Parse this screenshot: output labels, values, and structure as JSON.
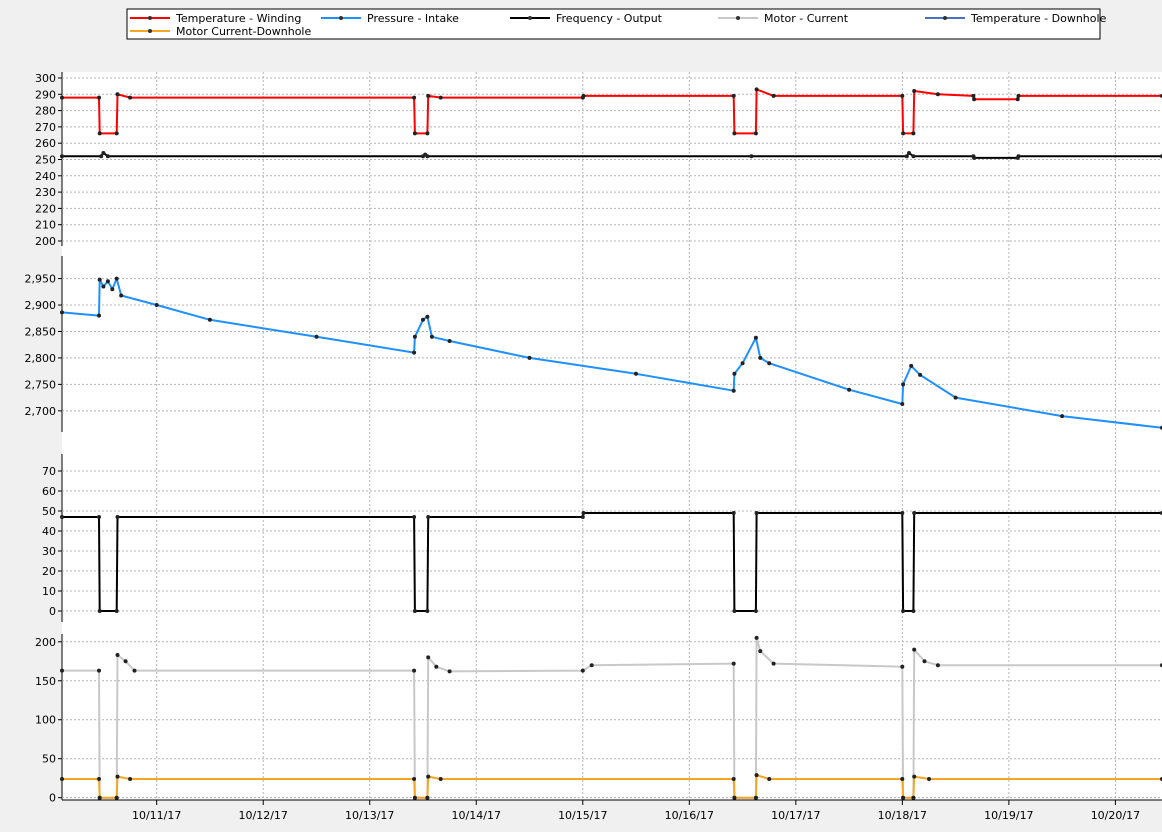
{
  "legend": [
    {
      "label": "Temperature - Winding",
      "color": "#ff0000"
    },
    {
      "label": "Pressure - Intake",
      "color": "#1e90ff"
    },
    {
      "label": "Frequency - Output",
      "color": "#000000"
    },
    {
      "label": "Motor - Current",
      "color": "#c8c8c8"
    },
    {
      "label": "Temperature - Downhole",
      "color": "#4a72c4"
    },
    {
      "label": "Motor Current-Downhole",
      "color": "#f5a623"
    }
  ],
  "colors": {
    "background": "#f0f0f0",
    "plot_background": "#ffffff",
    "grid": "#b4b4b4",
    "axis": "#000000"
  },
  "chart_data": {
    "type": "line",
    "x_axis": {
      "type": "date",
      "range": [
        "10/10/17 14:40",
        "10/20/17 22:30"
      ],
      "tick_labels": [
        "10/11/17",
        "10/12/17",
        "10/13/17",
        "10/14/17",
        "10/15/17",
        "10/16/17",
        "10/17/17",
        "10/18/17",
        "10/19/17",
        "10/20/17"
      ],
      "grid": true
    },
    "panels": [
      {
        "name": "temperature",
        "ylim": [
          200,
          300
        ],
        "yticks": [
          "200",
          "210",
          "220",
          "230",
          "240",
          "250",
          "260",
          "270",
          "280",
          "290",
          "300"
        ],
        "series": [
          {
            "name": "Temperature - Winding",
            "color": "#ff0000",
            "points": [
              [
                "10/10/17 14:40",
                288
              ],
              [
                "10/10/17 23:00",
                288
              ],
              [
                "10/10/17 23:10",
                266
              ],
              [
                "10/11/17 03:00",
                266
              ],
              [
                "10/11/17 03:10",
                290
              ],
              [
                "10/11/17 06:00",
                288
              ],
              [
                "10/13/17 22:00",
                288
              ],
              [
                "10/13/17 22:10",
                266
              ],
              [
                "10/14/17 01:00",
                266
              ],
              [
                "10/14/17 01:10",
                289
              ],
              [
                "10/14/17 04:00",
                288
              ],
              [
                "10/15/17 12:00",
                288
              ],
              [
                "10/15/17 12:10",
                289
              ],
              [
                "10/16/17 22:00",
                289
              ],
              [
                "10/16/17 22:10",
                266
              ],
              [
                "10/17/17 03:00",
                266
              ],
              [
                "10/17/17 03:10",
                293
              ],
              [
                "10/17/17 07:00",
                289
              ],
              [
                "10/18/17 12:00",
                289
              ],
              [
                "10/18/17 12:10",
                266
              ],
              [
                "10/18/17 14:30",
                266
              ],
              [
                "10/18/17 14:40",
                292
              ],
              [
                "10/18/17 20:00",
                290
              ],
              [
                "10/19/17 04:00",
                289
              ],
              [
                "10/19/17 04:10",
                287
              ],
              [
                "10/19/17 14:00",
                287
              ],
              [
                "10/19/17 14:10",
                289
              ],
              [
                "10/20/17 22:30",
                289
              ]
            ]
          },
          {
            "name": "Temperature - Downhole",
            "color": "#000000",
            "points": [
              [
                "10/10/17 14:40",
                252
              ],
              [
                "10/10/17 23:30",
                252
              ],
              [
                "10/11/17 00:00",
                254
              ],
              [
                "10/11/17 01:00",
                252
              ],
              [
                "10/14/17 00:00",
                252
              ],
              [
                "10/14/17 00:30",
                253
              ],
              [
                "10/14/17 01:00",
                252
              ],
              [
                "10/17/17 02:00",
                252
              ],
              [
                "10/18/17 13:00",
                252
              ],
              [
                "10/18/17 13:30",
                254
              ],
              [
                "10/18/17 14:30",
                252
              ],
              [
                "10/19/17 04:00",
                252
              ],
              [
                "10/19/17 04:10",
                251
              ],
              [
                "10/19/17 14:00",
                251
              ],
              [
                "10/19/17 14:10",
                252
              ],
              [
                "10/20/17 22:30",
                252
              ]
            ]
          }
        ]
      },
      {
        "name": "pressure",
        "ylim": [
          2660,
          2970
        ],
        "yticks": [
          "2,700",
          "2,750",
          "2,800",
          "2,850",
          "2,900",
          "2,950"
        ],
        "series": [
          {
            "name": "Pressure - Intake",
            "color": "#1e90ff",
            "points": [
              [
                "10/10/17 14:40",
                2886
              ],
              [
                "10/10/17 23:00",
                2880
              ],
              [
                "10/10/17 23:10",
                2948
              ],
              [
                "10/11/17 00:00",
                2935
              ],
              [
                "10/11/17 01:00",
                2945
              ],
              [
                "10/11/17 02:00",
                2930
              ],
              [
                "10/11/17 03:00",
                2950
              ],
              [
                "10/11/17 04:00",
                2918
              ],
              [
                "10/11/17 12:00",
                2900
              ],
              [
                "10/12/17 00:00",
                2872
              ],
              [
                "10/13/17 00:00",
                2840
              ],
              [
                "10/13/17 22:00",
                2810
              ],
              [
                "10/13/17 22:10",
                2840
              ],
              [
                "10/14/17 00:00",
                2872
              ],
              [
                "10/14/17 01:00",
                2878
              ],
              [
                "10/14/17 02:00",
                2840
              ],
              [
                "10/14/17 06:00",
                2832
              ],
              [
                "10/15/17 00:00",
                2800
              ],
              [
                "10/16/17 00:00",
                2770
              ],
              [
                "10/16/17 22:00",
                2738
              ],
              [
                "10/16/17 22:10",
                2770
              ],
              [
                "10/17/17 00:00",
                2790
              ],
              [
                "10/17/17 03:00",
                2838
              ],
              [
                "10/17/17 04:00",
                2800
              ],
              [
                "10/17/17 06:00",
                2790
              ],
              [
                "10/18/17 00:00",
                2740
              ],
              [
                "10/18/17 12:00",
                2713
              ],
              [
                "10/18/17 12:10",
                2750
              ],
              [
                "10/18/17 14:00",
                2785
              ],
              [
                "10/18/17 16:00",
                2768
              ],
              [
                "10/19/17 00:00",
                2725
              ],
              [
                "10/20/17 00:00",
                2690
              ],
              [
                "10/20/17 22:30",
                2668
              ]
            ]
          }
        ]
      },
      {
        "name": "frequency",
        "ylim": [
          -5,
          75
        ],
        "yticks": [
          "0",
          "10",
          "20",
          "30",
          "40",
          "50",
          "60",
          "70"
        ],
        "series": [
          {
            "name": "Frequency - Output",
            "color": "#000000",
            "points": [
              [
                "10/10/17 14:40",
                47
              ],
              [
                "10/10/17 23:00",
                47
              ],
              [
                "10/10/17 23:10",
                0
              ],
              [
                "10/11/17 03:00",
                0
              ],
              [
                "10/11/17 03:10",
                47
              ],
              [
                "10/13/17 22:00",
                47
              ],
              [
                "10/13/17 22:10",
                0
              ],
              [
                "10/14/17 01:00",
                0
              ],
              [
                "10/14/17 01:10",
                47
              ],
              [
                "10/15/17 12:00",
                47
              ],
              [
                "10/15/17 12:10",
                49
              ],
              [
                "10/16/17 22:00",
                49
              ],
              [
                "10/16/17 22:10",
                0
              ],
              [
                "10/17/17 03:00",
                0
              ],
              [
                "10/17/17 03:10",
                49
              ],
              [
                "10/18/17 12:00",
                49
              ],
              [
                "10/18/17 12:10",
                0
              ],
              [
                "10/18/17 14:30",
                0
              ],
              [
                "10/18/17 14:40",
                49
              ],
              [
                "10/20/17 22:30",
                49
              ]
            ]
          }
        ]
      },
      {
        "name": "current",
        "ylim": [
          -3,
          210
        ],
        "yticks": [
          "0",
          "50",
          "100",
          "150",
          "200"
        ],
        "series": [
          {
            "name": "Motor - Current",
            "color": "#c8c8c8",
            "points": [
              [
                "10/10/17 14:40",
                163
              ],
              [
                "10/10/17 23:00",
                163
              ],
              [
                "10/10/17 23:10",
                0
              ],
              [
                "10/11/17 03:00",
                0
              ],
              [
                "10/11/17 03:10",
                183
              ],
              [
                "10/11/17 05:00",
                175
              ],
              [
                "10/11/17 07:00",
                163
              ],
              [
                "10/13/17 22:00",
                163
              ],
              [
                "10/13/17 22:10",
                0
              ],
              [
                "10/14/17 01:00",
                0
              ],
              [
                "10/14/17 01:10",
                180
              ],
              [
                "10/14/17 03:00",
                168
              ],
              [
                "10/14/17 06:00",
                162
              ],
              [
                "10/15/17 12:00",
                163
              ],
              [
                "10/15/17 14:00",
                170
              ],
              [
                "10/16/17 22:00",
                172
              ],
              [
                "10/16/17 22:10",
                0
              ],
              [
                "10/17/17 03:00",
                0
              ],
              [
                "10/17/17 03:10",
                205
              ],
              [
                "10/17/17 04:00",
                188
              ],
              [
                "10/17/17 07:00",
                172
              ],
              [
                "10/18/17 12:00",
                168
              ],
              [
                "10/18/17 12:10",
                0
              ],
              [
                "10/18/17 14:30",
                0
              ],
              [
                "10/18/17 14:40",
                190
              ],
              [
                "10/18/17 17:00",
                175
              ],
              [
                "10/18/17 20:00",
                170
              ],
              [
                "10/20/17 22:30",
                170
              ]
            ]
          },
          {
            "name": "Motor Current-Downhole",
            "color": "#f5a623",
            "points": [
              [
                "10/10/17 14:40",
                24
              ],
              [
                "10/10/17 23:00",
                24
              ],
              [
                "10/10/17 23:10",
                0
              ],
              [
                "10/11/17 03:00",
                0
              ],
              [
                "10/11/17 03:10",
                27
              ],
              [
                "10/11/17 06:00",
                24
              ],
              [
                "10/13/17 22:00",
                24
              ],
              [
                "10/13/17 22:10",
                0
              ],
              [
                "10/14/17 01:00",
                0
              ],
              [
                "10/14/17 01:10",
                27
              ],
              [
                "10/14/17 04:00",
                24
              ],
              [
                "10/16/17 22:00",
                24
              ],
              [
                "10/16/17 22:10",
                0
              ],
              [
                "10/17/17 03:00",
                0
              ],
              [
                "10/17/17 03:10",
                29
              ],
              [
                "10/17/17 06:00",
                24
              ],
              [
                "10/18/17 12:00",
                24
              ],
              [
                "10/18/17 12:10",
                0
              ],
              [
                "10/18/17 14:30",
                0
              ],
              [
                "10/18/17 14:40",
                27
              ],
              [
                "10/18/17 18:00",
                24
              ],
              [
                "10/20/17 22:30",
                24
              ]
            ]
          }
        ]
      }
    ]
  }
}
